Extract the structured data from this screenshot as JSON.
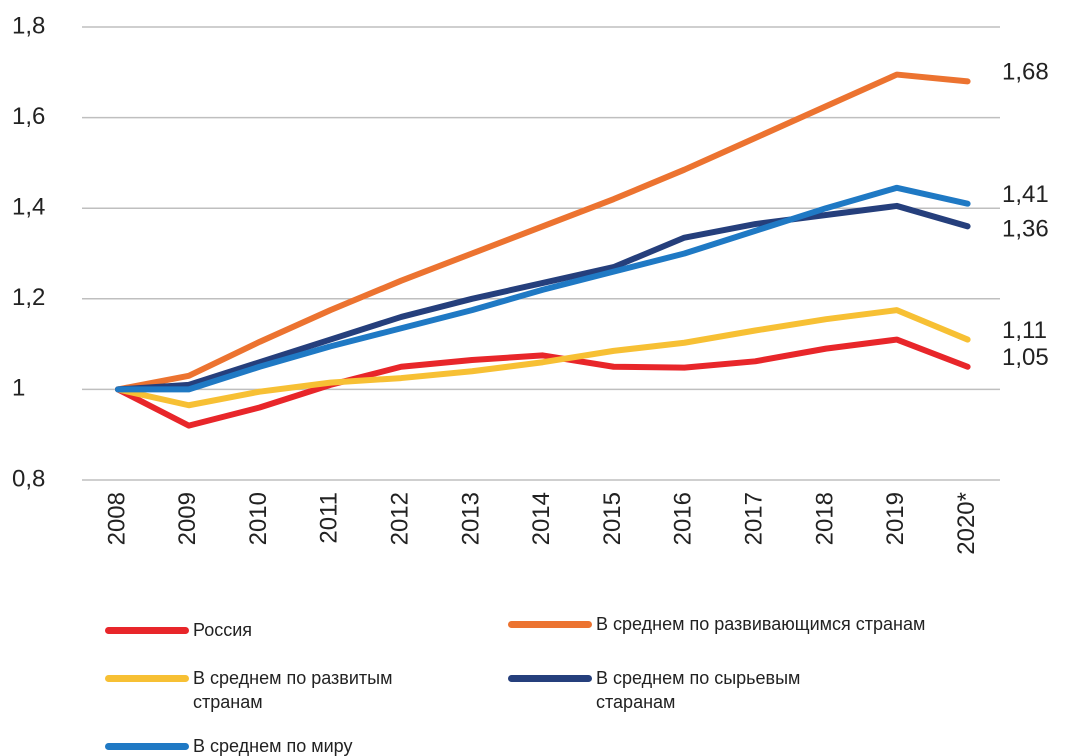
{
  "chart_data": {
    "type": "line",
    "categories": [
      "2008",
      "2009",
      "2010",
      "2011",
      "2012",
      "2013",
      "2014",
      "2015",
      "2016",
      "2017",
      "2018",
      "2019",
      "2020*"
    ],
    "ylim": [
      0.8,
      1.8
    ],
    "yticks": [
      {
        "value": 0.8,
        "label": "0,8"
      },
      1,
      {
        "value": 1.2,
        "label": "1,2"
      },
      {
        "value": 1.4,
        "label": "1,4"
      },
      {
        "value": 1.6,
        "label": "1,6"
      },
      {
        "value": 1.8,
        "label": "1,8"
      }
    ],
    "grid": true,
    "series": [
      {
        "name": "Россия",
        "color": "#e8262a",
        "values": [
          1.0,
          0.92,
          0.96,
          1.01,
          1.05,
          1.065,
          1.075,
          1.05,
          1.048,
          1.062,
          1.09,
          1.11,
          1.05
        ],
        "value_labels": [
          null,
          null,
          null,
          null,
          null,
          null,
          null,
          null,
          null,
          null,
          null,
          null,
          "1,05"
        ]
      },
      {
        "name": "В среднем по развивающимся странам",
        "color": "#ec7330",
        "values": [
          1.0,
          1.03,
          1.105,
          1.175,
          1.24,
          1.3,
          1.36,
          1.42,
          1.485,
          1.555,
          1.625,
          1.695,
          1.68
        ],
        "value_labels": [
          null,
          null,
          null,
          null,
          null,
          null,
          null,
          null,
          null,
          null,
          null,
          null,
          "1,68"
        ]
      },
      {
        "name": "В среднем по развитым странам",
        "color": "#f7c034",
        "values": [
          1.0,
          0.965,
          0.995,
          1.015,
          1.025,
          1.04,
          1.06,
          1.085,
          1.103,
          1.13,
          1.155,
          1.175,
          1.11
        ],
        "value_labels": [
          null,
          null,
          null,
          null,
          null,
          null,
          null,
          null,
          null,
          null,
          null,
          null,
          "1,11"
        ]
      },
      {
        "name": "В среднем по сырьевым старанам",
        "color": "#253f7c",
        "values": [
          1.0,
          1.01,
          1.06,
          1.11,
          1.16,
          1.2,
          1.235,
          1.27,
          1.335,
          1.365,
          1.385,
          1.405,
          1.36
        ],
        "value_labels": [
          null,
          null,
          null,
          null,
          null,
          null,
          null,
          null,
          null,
          null,
          null,
          null,
          "1,36"
        ]
      },
      {
        "name": "В среднем по миру",
        "color": "#1f79c4",
        "values": [
          1.0,
          1.0,
          1.05,
          1.095,
          1.135,
          1.175,
          1.22,
          1.26,
          1.3,
          1.35,
          1.4,
          1.445,
          1.41
        ],
        "value_labels": [
          null,
          null,
          null,
          null,
          null,
          null,
          null,
          null,
          null,
          null,
          null,
          null,
          "1,41"
        ]
      }
    ]
  }
}
